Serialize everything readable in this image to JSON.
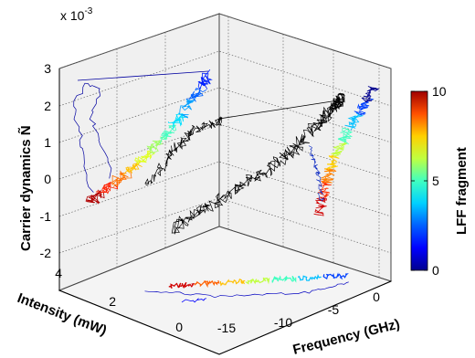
{
  "chart_data": {
    "type": "line",
    "dimensions": 3,
    "multiplier": "x 10",
    "multiplier_exponent": "-3",
    "zlabel": "Carrier dynamics Ñ",
    "ylabel": "Intensity (mW)",
    "xlabel": "Frequency (GHz)",
    "colorbar_label": "LFF fragment",
    "z_ticks": [
      "3",
      "2",
      "1",
      "0",
      "-1",
      "-2"
    ],
    "intensity_ticks": [
      "4",
      "2",
      "0"
    ],
    "frequency_ticks": [
      "-15",
      "-10",
      "-5",
      "0"
    ],
    "colorbar_ticks": [
      "10",
      "5",
      "0"
    ],
    "xlim": [
      -17,
      2
    ],
    "ylim": [
      0,
      4
    ],
    "zlim": [
      -2.5,
      3.5
    ],
    "colorbar_range": [
      0,
      10
    ],
    "grid": true,
    "colormap": "jet",
    "trajectory_colors": [
      "#00008f",
      "#0000ff",
      "#0080ff",
      "#00ffff",
      "#80ff80",
      "#ffff00",
      "#ff8000",
      "#ff0000",
      "#800000"
    ],
    "projection_color": "#000000",
    "legend": "colorbar-right",
    "series": [
      {
        "x": [
          -0.5,
          -1.5,
          -2.5,
          -3.5,
          -4.5,
          -5.5,
          -6.5,
          -7.5,
          -8.5,
          -9.5,
          -10.5,
          -11.5,
          -12.5,
          -13.5,
          -14.5,
          -15.5
        ],
        "y": [
          0.3,
          0.5,
          0.8,
          1.1,
          1.4,
          1.6,
          1.9,
          2.1,
          2.3,
          2.5,
          2.7,
          2.9,
          3.0,
          3.2,
          3.3,
          3.5
        ],
        "z": [
          3.0,
          2.5,
          2.0,
          1.6,
          1.2,
          0.9,
          0.6,
          0.4,
          0.2,
          0.0,
          -0.2,
          -0.4,
          -0.5,
          -0.6,
          -0.7,
          -0.8
        ],
        "fragment": [
          0,
          1,
          2,
          3,
          4,
          5,
          6,
          7,
          7,
          8,
          8,
          9,
          9,
          10,
          10,
          10
        ]
      }
    ]
  }
}
